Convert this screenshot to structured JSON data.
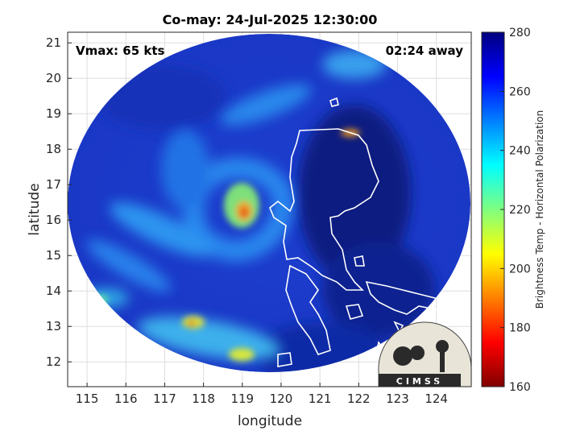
{
  "title": "Co-may: 24-Jul-2025 12:30:00",
  "vmax_label": "Vmax: 65 kts",
  "time_label": "02:24 away",
  "map": {
    "xlabel": "longitude",
    "ylabel": "latitude",
    "xlim": [
      114.5,
      124.9
    ],
    "ylim": [
      11.3,
      21.3
    ],
    "xticks": [
      115,
      116,
      117,
      118,
      119,
      120,
      121,
      122,
      123,
      124
    ],
    "yticks": [
      12,
      13,
      14,
      15,
      16,
      17,
      18,
      19,
      20,
      21
    ],
    "grid": true,
    "storm_center": [
      119.3,
      16.2
    ]
  },
  "colorbar": {
    "label": "Brightness Temp - Horizontal Polarization",
    "range": [
      160,
      280
    ],
    "ticks": [
      160,
      180,
      200,
      220,
      240,
      260,
      280
    ]
  },
  "logo_text": "CIMSS",
  "colors": {
    "background_deep": "#0a1e7a",
    "field_blue": "#1f49d8",
    "highlight_red": "#e0301a",
    "coast": "#ffffff"
  }
}
